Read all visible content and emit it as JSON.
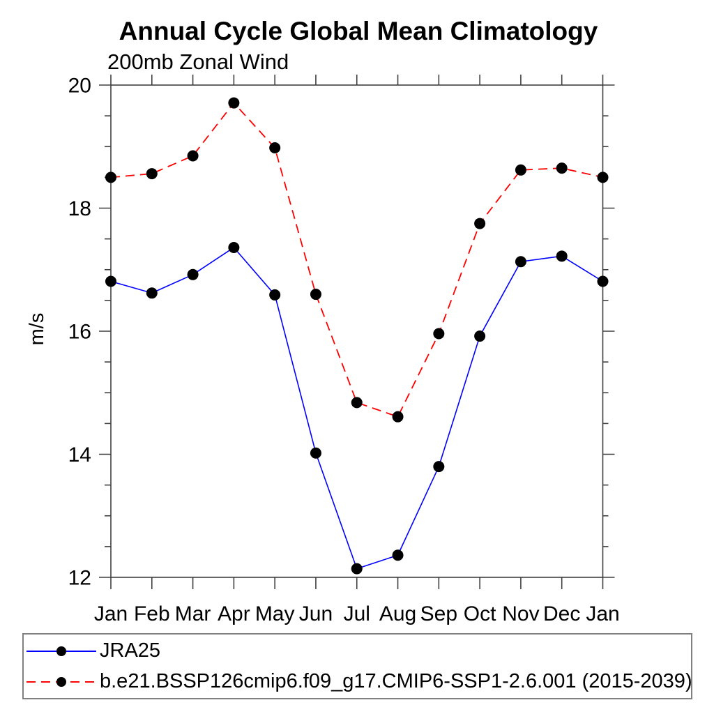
{
  "title": "Annual Cycle Global Mean Climatology",
  "subtitle": "200mb Zonal Wind",
  "y_axis_label": "m/s",
  "legend": {
    "entries": [
      {
        "label": "JRA25"
      },
      {
        "label": "b.e21.BSSP126cmip6.f09_g17.CMIP6-SSP1-2.6.001 (2015-2039)"
      }
    ]
  },
  "chart_data": {
    "type": "line",
    "title": "Annual Cycle Global Mean Climatology",
    "subtitle": "200mb Zonal Wind",
    "xlabel": "",
    "ylabel": "m/s",
    "categories": [
      "Jan",
      "Feb",
      "Mar",
      "Apr",
      "May",
      "Jun",
      "Jul",
      "Aug",
      "Sep",
      "Oct",
      "Nov",
      "Dec",
      "Jan"
    ],
    "series": [
      {
        "name": "JRA25",
        "color": "#0000ff",
        "line_style": "solid",
        "values": [
          16.81,
          16.62,
          16.92,
          17.36,
          16.59,
          14.02,
          12.14,
          12.36,
          13.8,
          15.92,
          17.13,
          17.22,
          16.81
        ]
      },
      {
        "name": "b.e21.BSSP126cmip6.f09_g17.CMIP6-SSP1-2.6.001 (2015-2039)",
        "color": "#ff0000",
        "line_style": "dashed",
        "values": [
          18.5,
          18.56,
          18.85,
          19.71,
          18.98,
          16.6,
          14.84,
          14.61,
          15.96,
          17.75,
          18.62,
          18.65,
          18.5
        ]
      }
    ],
    "ylim": [
      12,
      20
    ],
    "yticks_major": [
      12,
      14,
      16,
      18,
      20
    ],
    "ytick_minor_step": 0.5,
    "marker": {
      "shape": "circle",
      "color": "#000000"
    },
    "grid": false,
    "legend_position": "below"
  }
}
